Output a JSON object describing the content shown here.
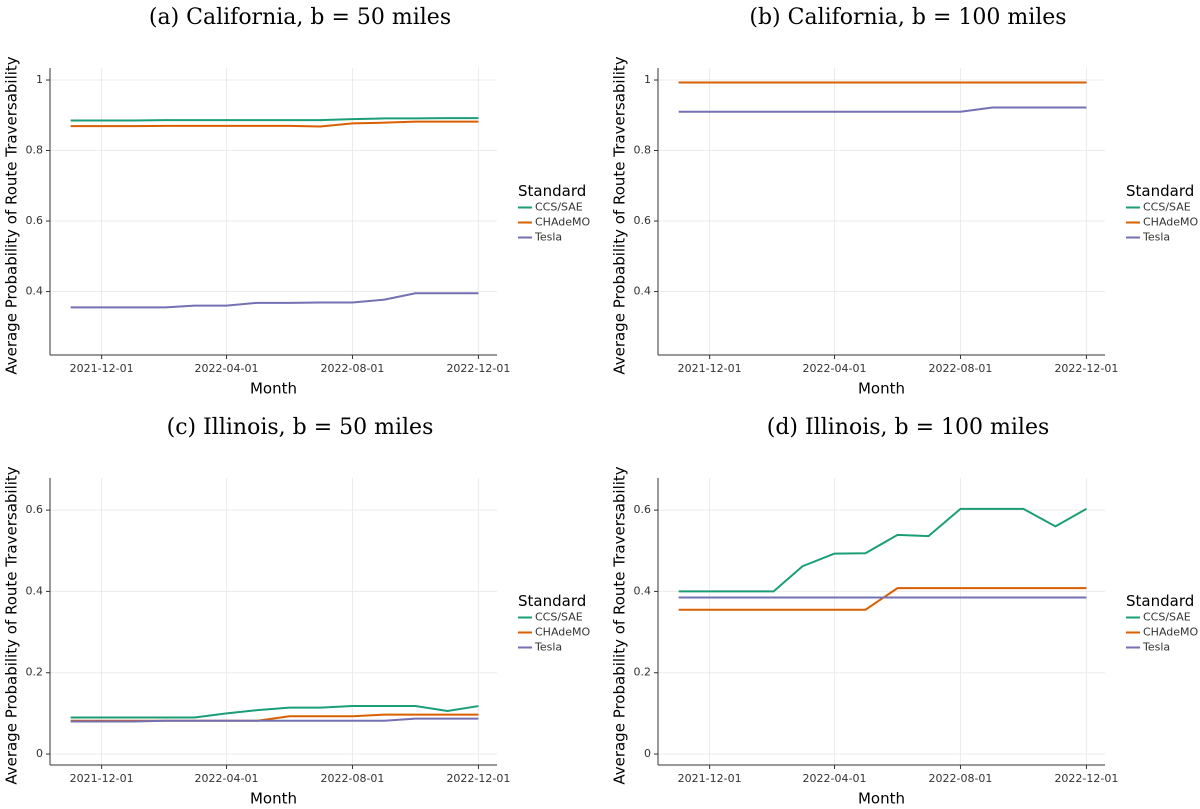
{
  "chart_data": [
    {
      "type": "line",
      "title": "(a) California, b = 50 miles",
      "xlabel": "Month",
      "ylabel": "Average Probability of Route Traversability",
      "legend_title": "Standard",
      "legend": "right",
      "grid": true,
      "x": [
        "2021-11-01",
        "2021-12-01",
        "2022-01-01",
        "2022-02-01",
        "2022-03-01",
        "2022-04-01",
        "2022-05-01",
        "2022-06-01",
        "2022-07-01",
        "2022-08-01",
        "2022-09-01",
        "2022-10-01",
        "2022-11-01",
        "2022-12-01"
      ],
      "xlim": [
        "2021-10-12",
        "2022-12-19"
      ],
      "xticks": [
        "2021-12-01",
        "2022-04-01",
        "2022-08-01",
        "2022-12-01"
      ],
      "ylim": [
        0.22,
        1.034
      ],
      "yticks": [
        0.4,
        0.6,
        0.8,
        1
      ],
      "series": [
        {
          "name": "CCS/SAE",
          "color": "#1b9e77",
          "values": [
            0.885,
            0.885,
            0.885,
            0.886,
            0.886,
            0.886,
            0.886,
            0.886,
            0.886,
            0.889,
            0.891,
            0.891,
            0.892,
            0.892
          ]
        },
        {
          "name": "CHAdeMO",
          "color": "#d95f02",
          "values": [
            0.869,
            0.869,
            0.869,
            0.87,
            0.87,
            0.87,
            0.87,
            0.87,
            0.868,
            0.877,
            0.879,
            0.882,
            0.882,
            0.882
          ]
        },
        {
          "name": "Tesla",
          "color": "#7570b3",
          "values": [
            0.355,
            0.355,
            0.355,
            0.355,
            0.36,
            0.36,
            0.368,
            0.368,
            0.369,
            0.369,
            0.377,
            0.395,
            0.395,
            0.395
          ]
        }
      ]
    },
    {
      "type": "line",
      "title": "(b) California, b = 100 miles",
      "xlabel": "Month",
      "ylabel": "Average Probability of Route Traversability",
      "legend_title": "Standard",
      "legend": "right",
      "grid": true,
      "x": [
        "2021-11-01",
        "2021-12-01",
        "2022-01-01",
        "2022-02-01",
        "2022-03-01",
        "2022-04-01",
        "2022-05-01",
        "2022-06-01",
        "2022-07-01",
        "2022-08-01",
        "2022-09-01",
        "2022-10-01",
        "2022-11-01",
        "2022-12-01"
      ],
      "xlim": [
        "2021-10-12",
        "2022-12-19"
      ],
      "xticks": [
        "2021-12-01",
        "2022-04-01",
        "2022-08-01",
        "2022-12-01"
      ],
      "ylim": [
        0.22,
        1.034
      ],
      "yticks": [
        0.4,
        0.6,
        0.8,
        1
      ],
      "series": [
        {
          "name": "CCS/SAE",
          "color": "#1b9e77",
          "values": [
            0.993,
            0.993,
            0.993,
            0.993,
            0.993,
            0.993,
            0.993,
            0.993,
            0.993,
            0.993,
            0.993,
            0.993,
            0.993,
            0.993
          ]
        },
        {
          "name": "CHAdeMO",
          "color": "#d95f02",
          "values": [
            0.993,
            0.993,
            0.993,
            0.993,
            0.993,
            0.993,
            0.993,
            0.993,
            0.993,
            0.993,
            0.993,
            0.993,
            0.993,
            0.993
          ]
        },
        {
          "name": "Tesla",
          "color": "#7570b3",
          "values": [
            0.91,
            0.91,
            0.91,
            0.91,
            0.91,
            0.91,
            0.91,
            0.91,
            0.91,
            0.91,
            0.922,
            0.922,
            0.922,
            0.922
          ]
        }
      ]
    },
    {
      "type": "line",
      "title": "(c) Illinois, b = 50 miles",
      "xlabel": "Month",
      "ylabel": "Average Probability of Route Traversability",
      "legend_title": "Standard",
      "legend": "right",
      "grid": true,
      "x": [
        "2021-11-01",
        "2021-12-01",
        "2022-01-01",
        "2022-02-01",
        "2022-03-01",
        "2022-04-01",
        "2022-05-01",
        "2022-06-01",
        "2022-07-01",
        "2022-08-01",
        "2022-09-01",
        "2022-10-01",
        "2022-11-01",
        "2022-12-01"
      ],
      "xlim": [
        "2021-10-12",
        "2022-12-19"
      ],
      "xticks": [
        "2021-12-01",
        "2022-04-01",
        "2022-08-01",
        "2022-12-01"
      ],
      "ylim": [
        -0.027,
        0.679
      ],
      "yticks": [
        0,
        0.2,
        0.4,
        0.6
      ],
      "series": [
        {
          "name": "CCS/SAE",
          "color": "#1b9e77",
          "values": [
            0.09,
            0.09,
            0.09,
            0.09,
            0.09,
            0.1,
            0.108,
            0.114,
            0.114,
            0.118,
            0.118,
            0.118,
            0.106,
            0.118
          ]
        },
        {
          "name": "CHAdeMO",
          "color": "#d95f02",
          "values": [
            0.082,
            0.082,
            0.082,
            0.082,
            0.082,
            0.082,
            0.082,
            0.093,
            0.093,
            0.093,
            0.097,
            0.097,
            0.097,
            0.097
          ]
        },
        {
          "name": "Tesla",
          "color": "#7570b3",
          "values": [
            0.08,
            0.08,
            0.08,
            0.082,
            0.082,
            0.082,
            0.082,
            0.082,
            0.082,
            0.082,
            0.082,
            0.087,
            0.087,
            0.087
          ]
        }
      ]
    },
    {
      "type": "line",
      "title": "(d) Illinois, b = 100 miles",
      "xlabel": "Month",
      "ylabel": "Average Probability of Route Traversability",
      "legend_title": "Standard",
      "legend": "right",
      "grid": true,
      "x": [
        "2021-11-01",
        "2021-12-01",
        "2022-01-01",
        "2022-02-01",
        "2022-03-01",
        "2022-04-01",
        "2022-05-01",
        "2022-06-01",
        "2022-07-01",
        "2022-08-01",
        "2022-09-01",
        "2022-10-01",
        "2022-11-01",
        "2022-12-01"
      ],
      "xlim": [
        "2021-10-12",
        "2022-12-19"
      ],
      "xticks": [
        "2021-12-01",
        "2022-04-01",
        "2022-08-01",
        "2022-12-01"
      ],
      "ylim": [
        -0.027,
        0.679
      ],
      "yticks": [
        0,
        0.2,
        0.4,
        0.6
      ],
      "series": [
        {
          "name": "CCS/SAE",
          "color": "#1b9e77",
          "values": [
            0.4,
            0.4,
            0.4,
            0.4,
            0.462,
            0.493,
            0.494,
            0.539,
            0.536,
            0.603,
            0.603,
            0.603,
            0.56,
            0.603
          ]
        },
        {
          "name": "CHAdeMO",
          "color": "#d95f02",
          "values": [
            0.355,
            0.355,
            0.355,
            0.355,
            0.355,
            0.355,
            0.355,
            0.408,
            0.408,
            0.408,
            0.408,
            0.408,
            0.408,
            0.408
          ]
        },
        {
          "name": "Tesla",
          "color": "#7570b3",
          "values": [
            0.385,
            0.385,
            0.385,
            0.385,
            0.385,
            0.385,
            0.385,
            0.385,
            0.385,
            0.385,
            0.385,
            0.385,
            0.385,
            0.385
          ]
        }
      ]
    }
  ]
}
